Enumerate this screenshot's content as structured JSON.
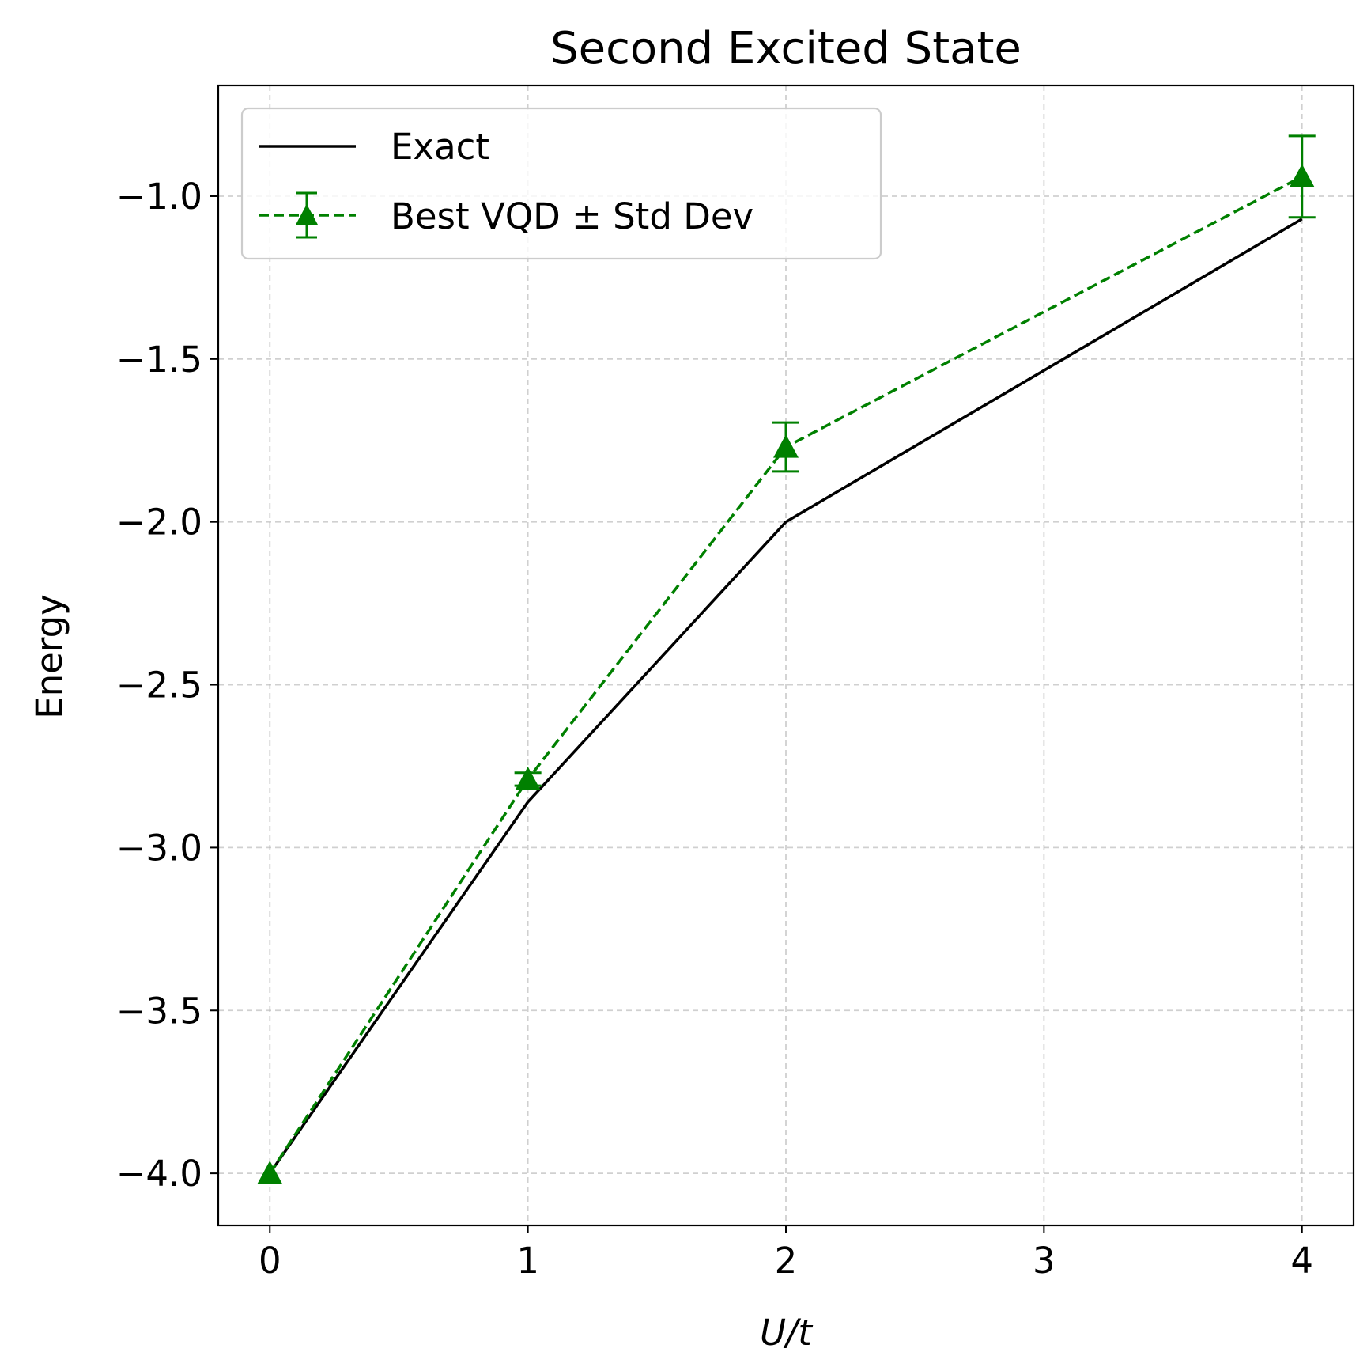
{
  "chart_data": {
    "type": "line",
    "title": "Second Excited State",
    "xlabel": "U/t",
    "ylabel": "Energy",
    "xlim": [
      -0.2,
      4.2
    ],
    "ylim": [
      -4.16,
      -0.66
    ],
    "x_ticks": [
      0,
      1,
      2,
      3,
      4
    ],
    "x_tick_labels": [
      "0",
      "1",
      "2",
      "3",
      "4"
    ],
    "y_ticks": [
      -4.0,
      -3.5,
      -3.0,
      -2.5,
      -2.0,
      -1.5,
      -1.0
    ],
    "y_tick_labels": [
      "−4.0",
      "−3.5",
      "−3.0",
      "−2.5",
      "−2.0",
      "−1.5",
      "−1.0"
    ],
    "grid": true,
    "legend_position": "top-left",
    "series": [
      {
        "name": "Exact",
        "style": "solid",
        "marker": "none",
        "color": "#000000",
        "x": [
          0,
          1,
          2,
          4
        ],
        "y": [
          -4.0,
          -2.86,
          -2.0,
          -1.07
        ]
      },
      {
        "name": "Best VQD ± Std Dev",
        "style": "dashed",
        "marker": "triangle",
        "color": "#008000",
        "x": [
          0,
          1,
          2,
          4
        ],
        "y": [
          -4.0,
          -2.79,
          -1.77,
          -0.94
        ],
        "yerr": [
          0.0,
          0.02,
          0.075,
          0.125
        ]
      }
    ]
  }
}
